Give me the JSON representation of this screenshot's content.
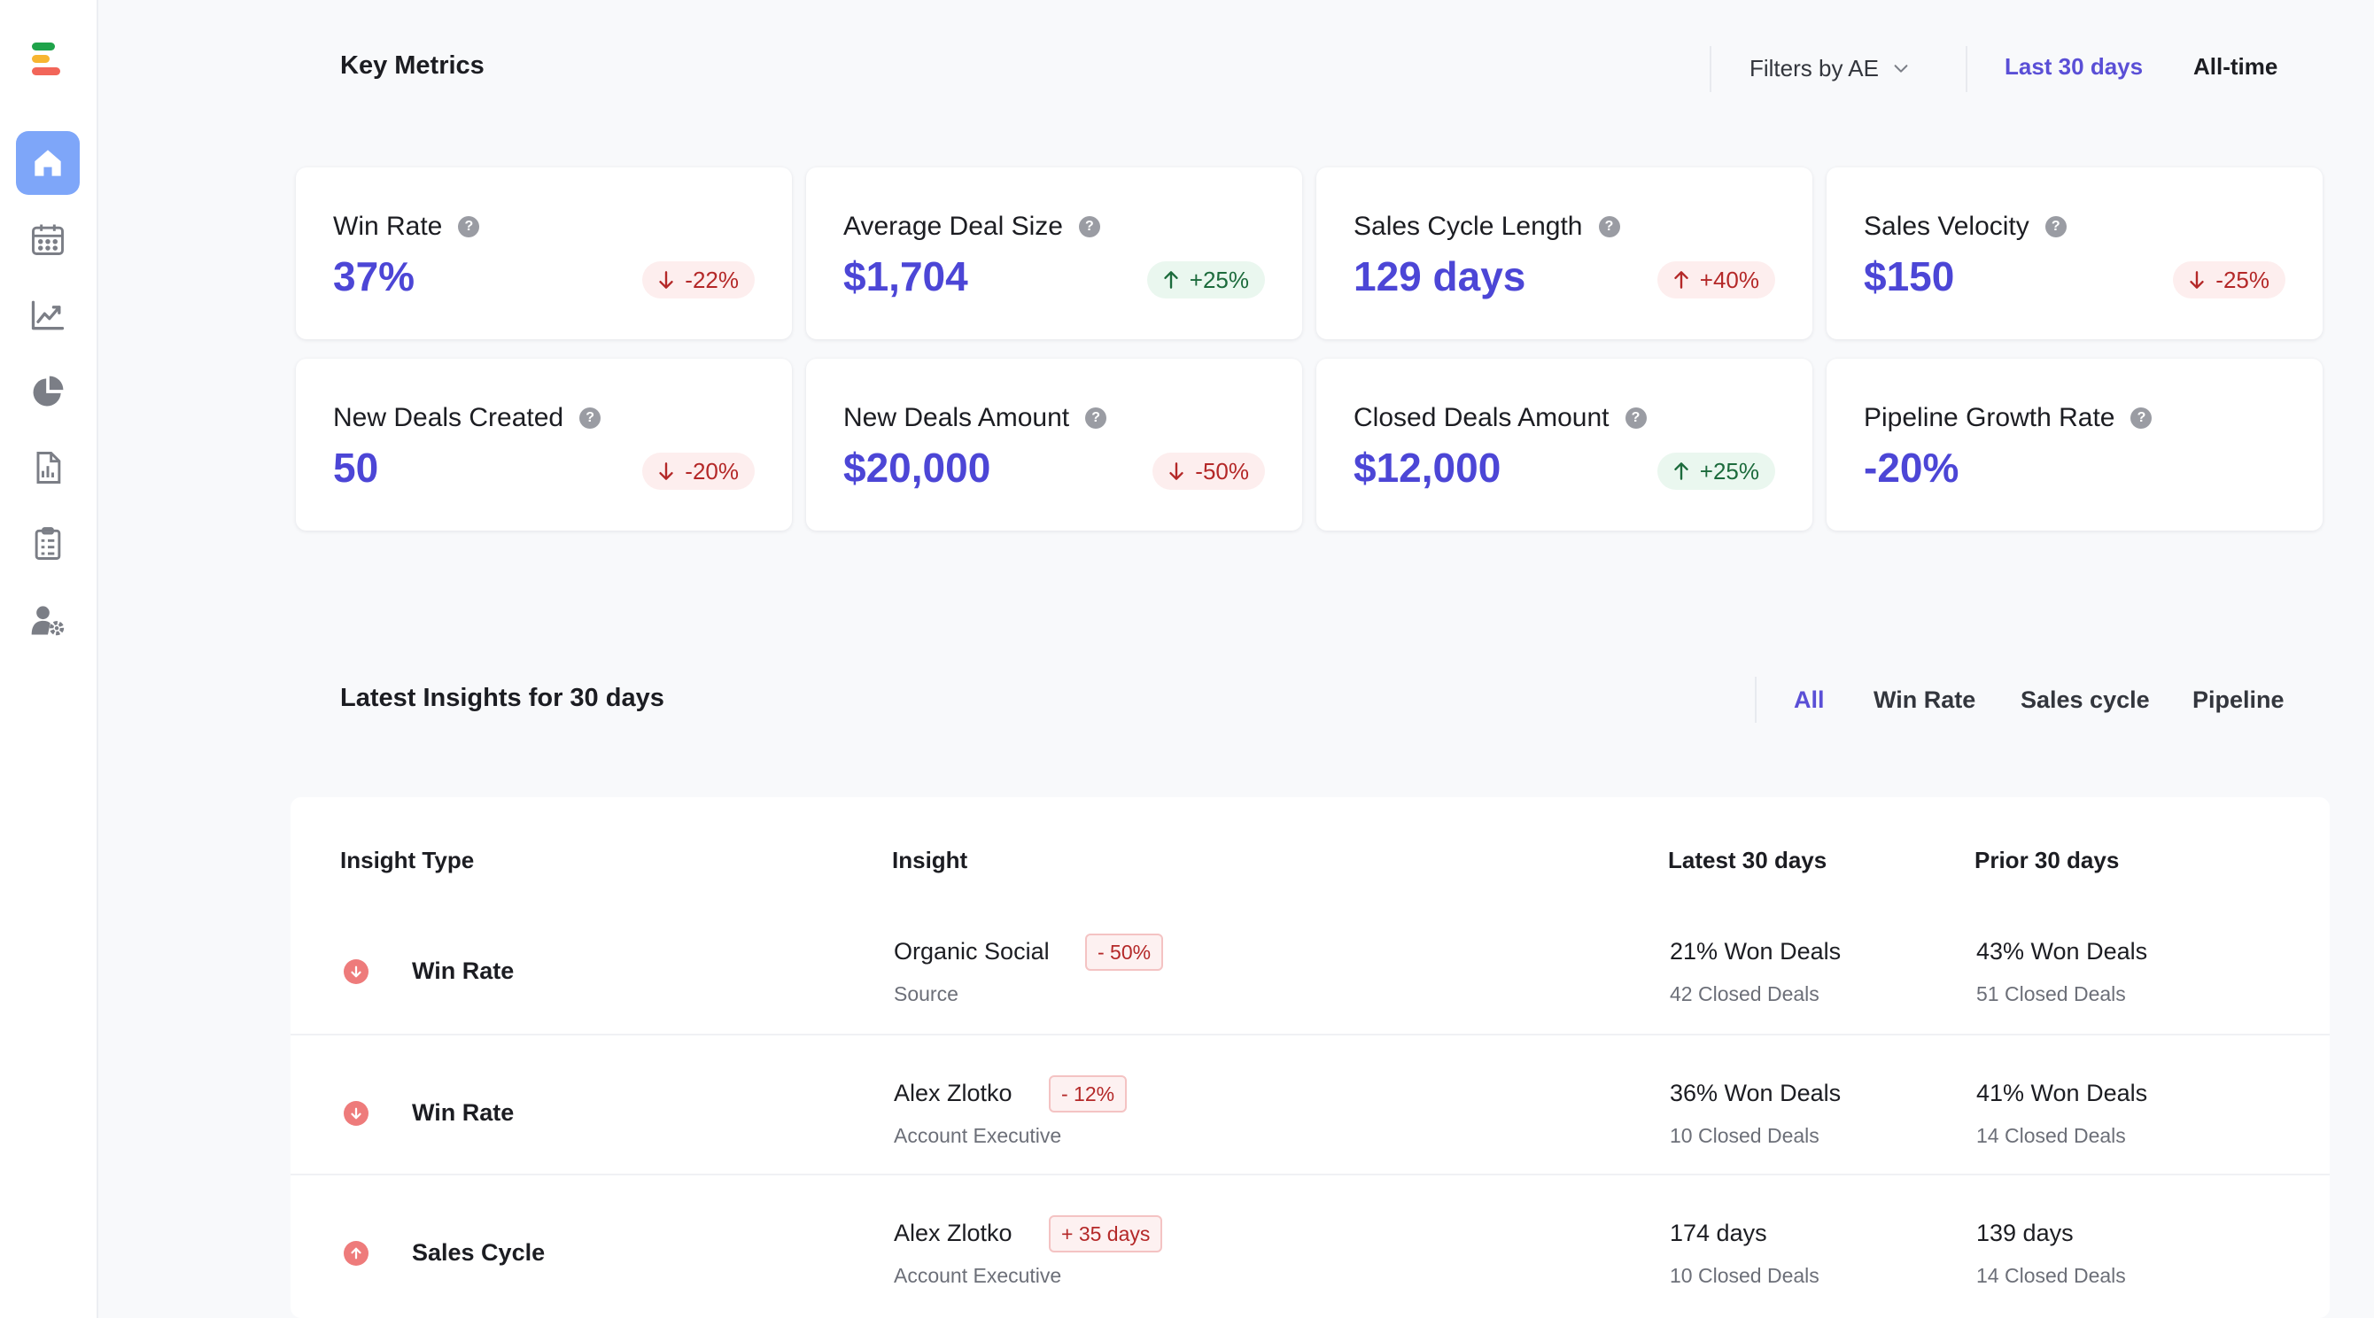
{
  "colors": {
    "accent": "#4c46d6",
    "tab_active": "#5a4fd6",
    "up": "#1c6b3c",
    "down": "#b42828",
    "sidebar_active": "#7ea6f9",
    "logo": [
      "#1fa34a",
      "#f7b531",
      "#f04a3c"
    ]
  },
  "sidebar": {
    "items": [
      {
        "icon": "home-icon",
        "active": true
      },
      {
        "icon": "calendar-icon",
        "active": false
      },
      {
        "icon": "line-chart-icon",
        "active": false
      },
      {
        "icon": "pie-chart-icon",
        "active": false
      },
      {
        "icon": "report-icon",
        "active": false
      },
      {
        "icon": "clipboard-icon",
        "active": false
      },
      {
        "icon": "user-settings-icon",
        "active": false
      }
    ]
  },
  "key_metrics": {
    "title": "Key Metrics",
    "filter_label": "Filters by AE",
    "ranges": [
      "Last 30 days",
      "All-time"
    ],
    "active_range": "Last 30 days"
  },
  "metrics": [
    {
      "label": "Win Rate",
      "value": "37%",
      "change": "-22%",
      "direction": "down"
    },
    {
      "label": "Average Deal Size",
      "value": "$1,704",
      "change": "+25%",
      "direction": "up"
    },
    {
      "label": "Sales Cycle Length",
      "value": "129 days",
      "change": "+40%",
      "direction": "up-bad"
    },
    {
      "label": "Sales Velocity",
      "value": "$150",
      "change": "-25%",
      "direction": "down"
    },
    {
      "label": "New Deals Created",
      "value": "50",
      "change": "-20%",
      "direction": "down"
    },
    {
      "label": "New Deals Amount",
      "value": "$20,000",
      "change": "-50%",
      "direction": "down"
    },
    {
      "label": "Closed Deals Amount",
      "value": "$12,000",
      "change": "+25%",
      "direction": "up"
    },
    {
      "label": "Pipeline Growth Rate",
      "value": "-20%",
      "change": null,
      "direction": null
    }
  ],
  "insights": {
    "title": "Latest Insights for 30 days",
    "tabs": [
      "All",
      "Win Rate",
      "Sales cycle",
      "Pipeline"
    ],
    "active_tab": "All",
    "columns": [
      "Insight Type",
      "Insight",
      "Latest 30 days",
      "Prior 30 days"
    ],
    "rows": [
      {
        "trend": "down",
        "type": "Win Rate",
        "name": "Organic Social",
        "chip": "- 50%",
        "sub": "Source",
        "latest": "21% Won Deals",
        "latest_sub": "42 Closed Deals",
        "prior": "43% Won Deals",
        "prior_sub": "51 Closed Deals"
      },
      {
        "trend": "down",
        "type": "Win Rate",
        "name": "Alex Zlotko",
        "chip": "- 12%",
        "sub": "Account Executive",
        "latest": "36% Won Deals",
        "latest_sub": "10 Closed Deals",
        "prior": "41% Won Deals",
        "prior_sub": "14 Closed Deals"
      },
      {
        "trend": "up",
        "type": "Sales Cycle",
        "name": "Alex Zlotko",
        "chip": "+ 35 days",
        "sub": "Account Executive",
        "latest": "174 days",
        "latest_sub": "10 Closed Deals",
        "prior": "139 days",
        "prior_sub": "14 Closed Deals"
      }
    ]
  }
}
